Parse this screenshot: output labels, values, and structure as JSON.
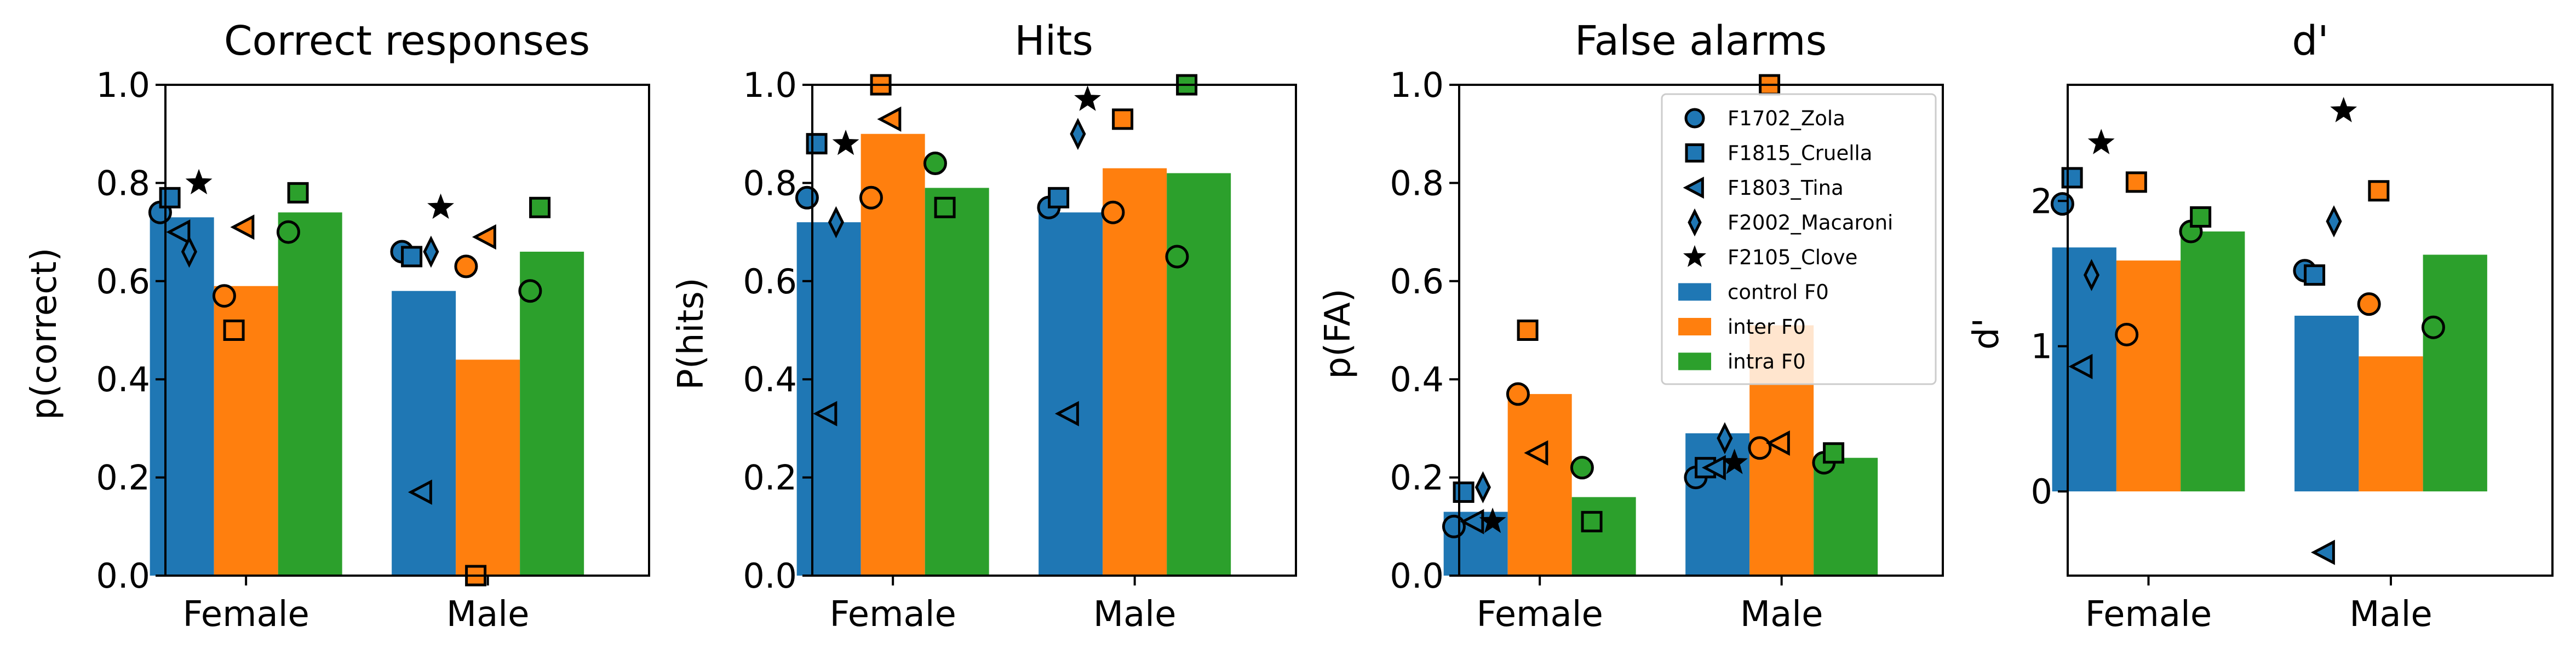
{
  "colors": {
    "control": "#1f77b4",
    "inter": "#ff7f0e",
    "intra": "#2ca02c"
  },
  "legend": {
    "entries": [
      {
        "label": "F1702_Zola",
        "marker": "circle"
      },
      {
        "label": "F1815_Cruella",
        "marker": "square"
      },
      {
        "label": "F1803_Tina",
        "marker": "triangle-left"
      },
      {
        "label": "F2002_Macaroni",
        "marker": "thin-diamond"
      },
      {
        "label": "F2105_Clove",
        "marker": "star"
      },
      {
        "label": "control F0",
        "patch": "control"
      },
      {
        "label": "inter F0",
        "patch": "inter"
      },
      {
        "label": "intra F0",
        "patch": "intra"
      }
    ]
  },
  "chart_data": [
    {
      "type": "bar",
      "title": "Correct responses",
      "ylabel": "p(correct)",
      "ylim": [
        0,
        1
      ],
      "yticks": [
        0,
        0.2,
        0.4,
        0.6,
        0.8,
        1.0
      ],
      "ytick_labels": [
        "0.0",
        "0.2",
        "0.4",
        "0.6",
        "0.8",
        "1.0"
      ],
      "categories": [
        "Female",
        "Male"
      ],
      "series": [
        {
          "name": "control F0",
          "color_key": "control",
          "values": [
            0.73,
            0.58
          ],
          "points": [
            {
              "animal": "F1702_Zola",
              "values": [
                0.74,
                0.66
              ]
            },
            {
              "animal": "F1815_Cruella",
              "values": [
                0.77,
                0.65
              ]
            },
            {
              "animal": "F1803_Tina",
              "values": [
                0.7,
                0.17
              ]
            },
            {
              "animal": "F2002_Macaroni",
              "values": [
                0.66,
                0.66
              ]
            },
            {
              "animal": "F2105_Clove",
              "values": [
                0.8,
                0.75
              ]
            }
          ]
        },
        {
          "name": "inter F0",
          "color_key": "inter",
          "values": [
            0.59,
            0.44
          ],
          "points": [
            {
              "animal": "F1702_Zola",
              "values": [
                0.57,
                0.63
              ]
            },
            {
              "animal": "F1815_Cruella",
              "values": [
                0.5,
                0.0
              ]
            },
            {
              "animal": "F1803_Tina",
              "values": [
                0.71,
                0.69
              ]
            }
          ]
        },
        {
          "name": "intra F0",
          "color_key": "intra",
          "values": [
            0.74,
            0.66
          ],
          "points": [
            {
              "animal": "F1702_Zola",
              "values": [
                0.7,
                0.58
              ]
            },
            {
              "animal": "F1815_Cruella",
              "values": [
                0.78,
                0.75
              ]
            }
          ]
        }
      ]
    },
    {
      "type": "bar",
      "title": "Hits",
      "ylabel": "P(hits)",
      "ylim": [
        0,
        1
      ],
      "yticks": [
        0,
        0.2,
        0.4,
        0.6,
        0.8,
        1.0
      ],
      "ytick_labels": [
        "0.0",
        "0.2",
        "0.4",
        "0.6",
        "0.8",
        "1.0"
      ],
      "categories": [
        "Female",
        "Male"
      ],
      "series": [
        {
          "name": "control F0",
          "color_key": "control",
          "values": [
            0.72,
            0.74
          ],
          "points": [
            {
              "animal": "F1702_Zola",
              "values": [
                0.77,
                0.75
              ]
            },
            {
              "animal": "F1815_Cruella",
              "values": [
                0.88,
                0.77
              ]
            },
            {
              "animal": "F1803_Tina",
              "values": [
                0.33,
                0.33
              ]
            },
            {
              "animal": "F2002_Macaroni",
              "values": [
                0.72,
                0.9
              ]
            },
            {
              "animal": "F2105_Clove",
              "values": [
                0.88,
                0.97
              ]
            }
          ]
        },
        {
          "name": "inter F0",
          "color_key": "inter",
          "values": [
            0.9,
            0.83
          ],
          "points": [
            {
              "animal": "F1702_Zola",
              "values": [
                0.77,
                0.74
              ]
            },
            {
              "animal": "F1815_Cruella",
              "values": [
                1.0,
                0.93
              ]
            },
            {
              "animal": "F1803_Tina",
              "values": [
                0.93,
                null
              ]
            }
          ]
        },
        {
          "name": "intra F0",
          "color_key": "intra",
          "values": [
            0.79,
            0.82
          ],
          "points": [
            {
              "animal": "F1702_Zola",
              "values": [
                0.84,
                0.65
              ]
            },
            {
              "animal": "F1815_Cruella",
              "values": [
                0.75,
                1.0
              ]
            }
          ]
        }
      ]
    },
    {
      "type": "bar",
      "title": "False alarms",
      "ylabel": "p(FA)",
      "ylim": [
        0,
        1
      ],
      "yticks": [
        0,
        0.2,
        0.4,
        0.6,
        0.8,
        1.0
      ],
      "ytick_labels": [
        "0.0",
        "0.2",
        "0.4",
        "0.6",
        "0.8",
        "1.0"
      ],
      "categories": [
        "Female",
        "Male"
      ],
      "legend_position": "upper right",
      "series": [
        {
          "name": "control F0",
          "color_key": "control",
          "values": [
            0.13,
            0.29
          ],
          "points": [
            {
              "animal": "F1702_Zola",
              "values": [
                0.1,
                0.2
              ]
            },
            {
              "animal": "F1815_Cruella",
              "values": [
                0.17,
                0.22
              ]
            },
            {
              "animal": "F1803_Tina",
              "values": [
                0.11,
                0.22
              ]
            },
            {
              "animal": "F2002_Macaroni",
              "values": [
                0.18,
                0.28
              ]
            },
            {
              "animal": "F2105_Clove",
              "values": [
                0.11,
                0.23
              ]
            }
          ]
        },
        {
          "name": "inter F0",
          "color_key": "inter",
          "values": [
            0.37,
            0.51
          ],
          "points": [
            {
              "animal": "F1702_Zola",
              "values": [
                0.37,
                0.26
              ]
            },
            {
              "animal": "F1815_Cruella",
              "values": [
                0.5,
                1.0
              ]
            },
            {
              "animal": "F1803_Tina",
              "values": [
                0.25,
                0.27
              ]
            }
          ]
        },
        {
          "name": "intra F0",
          "color_key": "intra",
          "values": [
            0.16,
            0.24
          ],
          "points": [
            {
              "animal": "F1702_Zola",
              "values": [
                0.22,
                0.23
              ]
            },
            {
              "animal": "F1815_Cruella",
              "values": [
                0.11,
                0.25
              ]
            }
          ]
        }
      ]
    },
    {
      "type": "bar",
      "title": "d'",
      "ylabel": "d'",
      "ylim": [
        -0.58,
        2.8
      ],
      "yticks": [
        0,
        1,
        2
      ],
      "ytick_labels": [
        "0",
        "1",
        "2"
      ],
      "categories": [
        "Female",
        "Male"
      ],
      "series": [
        {
          "name": "control F0",
          "color_key": "control",
          "values": [
            1.68,
            1.21
          ],
          "points": [
            {
              "animal": "F1702_Zola",
              "values": [
                1.98,
                1.52
              ]
            },
            {
              "animal": "F1815_Cruella",
              "values": [
                2.16,
                1.49
              ]
            },
            {
              "animal": "F1803_Tina",
              "values": [
                0.86,
                -0.42
              ]
            },
            {
              "animal": "F2002_Macaroni",
              "values": [
                1.49,
                1.86
              ]
            },
            {
              "animal": "F2105_Clove",
              "values": [
                2.4,
                2.62
              ]
            }
          ]
        },
        {
          "name": "inter F0",
          "color_key": "inter",
          "values": [
            1.59,
            0.93
          ],
          "points": [
            {
              "animal": "F1702_Zola",
              "values": [
                1.08,
                1.29
              ]
            },
            {
              "animal": "F1815_Cruella",
              "values": [
                2.13,
                2.07
              ]
            }
          ]
        },
        {
          "name": "intra F0",
          "color_key": "intra",
          "values": [
            1.79,
            1.63
          ],
          "points": [
            {
              "animal": "F1702_Zola",
              "values": [
                1.79,
                1.13
              ]
            },
            {
              "animal": "F1815_Cruella",
              "values": [
                1.89,
                null
              ]
            }
          ]
        }
      ]
    }
  ]
}
